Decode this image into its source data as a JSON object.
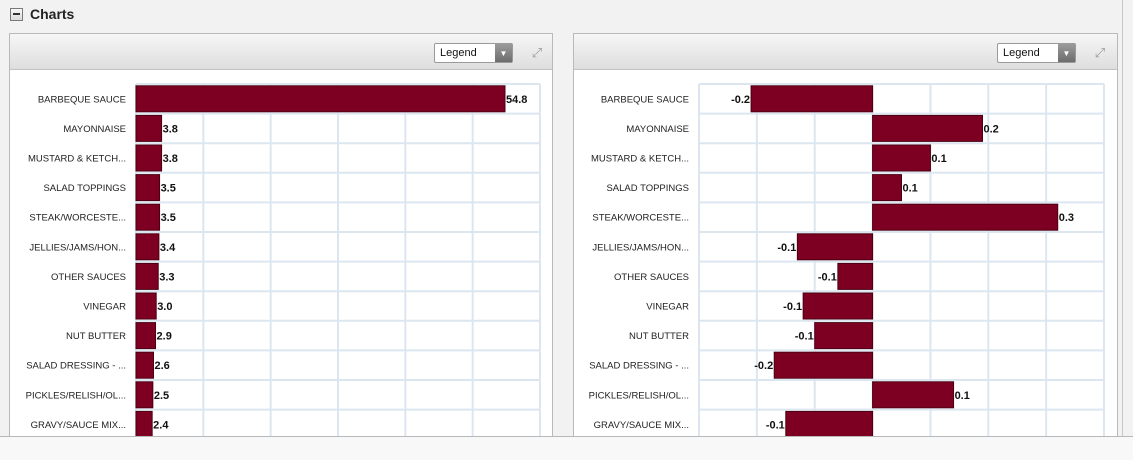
{
  "section": {
    "title": "Charts"
  },
  "panels": [
    {
      "legend_label": "Legend"
    },
    {
      "legend_label": "Legend"
    }
  ],
  "colors": {
    "bar": "#7d0022",
    "grid": "#dce6f0"
  },
  "icons": {
    "collapse": "minus-icon",
    "expand": "expand-icon",
    "dropdown": "chevron-down-icon"
  },
  "chart_data": [
    {
      "type": "bar",
      "orientation": "horizontal",
      "categories": [
        "BARBEQUE SAUCE",
        "MAYONNAISE",
        "MUSTARD & KETCH...",
        "SALAD TOPPINGS",
        "STEAK/WORCESTE...",
        "JELLIES/JAMS/HON...",
        "OTHER SAUCES",
        "VINEGAR",
        "NUT BUTTER",
        "SALAD DRESSING - ...",
        "PICKLES/RELISH/OL...",
        "GRAVY/SAUCE MIX..."
      ],
      "values": [
        54.8,
        3.8,
        3.8,
        3.5,
        3.5,
        3.4,
        3.3,
        3.0,
        2.9,
        2.6,
        2.5,
        2.4
      ],
      "value_labels": [
        "54.8",
        "3.8",
        "3.8",
        "3.5",
        "3.5",
        "3.4",
        "3.3",
        "3.0",
        "2.9",
        "2.6",
        "2.5",
        "2.4"
      ],
      "xlim": [
        0,
        60
      ],
      "grid": true
    },
    {
      "type": "bar",
      "orientation": "horizontal",
      "categories": [
        "BARBEQUE SAUCE",
        "MAYONNAISE",
        "MUSTARD & KETCH...",
        "SALAD TOPPINGS",
        "STEAK/WORCESTE...",
        "JELLIES/JAMS/HON...",
        "OTHER SAUCES",
        "VINEGAR",
        "NUT BUTTER",
        "SALAD DRESSING - ...",
        "PICKLES/RELISH/OL...",
        "GRAVY/SAUCE MIX..."
      ],
      "values": [
        -0.21,
        0.19,
        0.1,
        0.05,
        0.32,
        -0.13,
        -0.06,
        -0.12,
        -0.1,
        -0.17,
        0.14,
        -0.15
      ],
      "value_labels": [
        "-0.2",
        "0.2",
        "0.1",
        "0.1",
        "0.3",
        "-0.1",
        "-0.1",
        "-0.1",
        "-0.1",
        "-0.2",
        "0.1",
        "-0.1"
      ],
      "xlim": [
        -0.3,
        0.4
      ],
      "grid": true
    }
  ]
}
